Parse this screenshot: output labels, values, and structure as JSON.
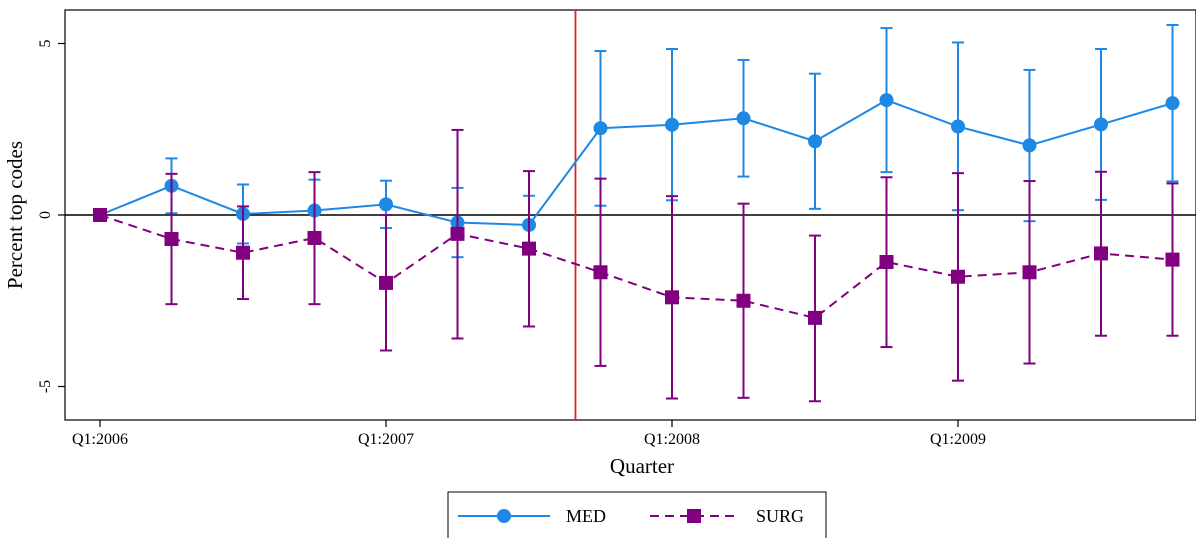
{
  "chart_data": {
    "type": "line",
    "xlabel": "Quarter",
    "ylabel": "Percent top codes",
    "xlim": [
      0,
      15.25
    ],
    "ylim": [
      -5.9,
      6
    ],
    "x_ticks": [
      {
        "x": 0,
        "label": "Q1:2006"
      },
      {
        "x": 4,
        "label": "Q1:2007"
      },
      {
        "x": 8,
        "label": "Q1:2008"
      },
      {
        "x": 12,
        "label": "Q1:2009"
      }
    ],
    "y_ticks": [
      {
        "y": -5,
        "label": "-5"
      },
      {
        "y": 0,
        "label": "0"
      },
      {
        "y": 5,
        "label": "5"
      }
    ],
    "reference_lines": {
      "horizontal_y": 0,
      "vertical_x": 6.65,
      "horizontal_color": "#000000",
      "vertical_color": "#e2231a"
    },
    "series": [
      {
        "name": "MED",
        "color": "#1e88e5",
        "marker": "circle",
        "dash": "solid",
        "x": [
          0,
          1,
          2,
          3,
          4,
          5,
          6,
          7,
          8,
          9,
          10,
          11,
          12,
          13,
          14,
          15
        ],
        "y": [
          0,
          0.85,
          0.03,
          0.13,
          0.31,
          -0.22,
          -0.29,
          2.53,
          2.63,
          2.82,
          2.15,
          3.35,
          2.58,
          2.03,
          2.64,
          3.26
        ],
        "ci_low": [
          0,
          0.05,
          -0.83,
          -0.76,
          -0.38,
          -1.23,
          -1.14,
          0.27,
          0.43,
          1.12,
          0.18,
          1.25,
          0.14,
          -0.18,
          0.44,
          0.98
        ],
        "ci_high": [
          0,
          1.65,
          0.89,
          1.03,
          1.0,
          0.79,
          0.56,
          4.78,
          4.84,
          4.52,
          4.12,
          5.45,
          5.03,
          4.23,
          4.84,
          5.54
        ]
      },
      {
        "name": "SURG",
        "color": "#800080",
        "marker": "square",
        "dash": "dashed",
        "x": [
          0,
          1,
          2,
          3,
          4,
          5,
          6,
          7,
          8,
          9,
          10,
          11,
          12,
          13,
          14,
          15
        ],
        "y": [
          0,
          -0.7,
          -1.1,
          -0.67,
          -1.98,
          -0.55,
          -0.98,
          -1.67,
          -2.4,
          -2.5,
          -3.0,
          -1.37,
          -1.8,
          -1.67,
          -1.12,
          -1.3
        ],
        "ci_low": [
          0,
          -2.6,
          -2.45,
          -2.6,
          -3.95,
          -3.6,
          -3.25,
          -4.4,
          -5.35,
          -5.33,
          -5.43,
          -3.85,
          -4.83,
          -4.33,
          -3.52,
          -3.52
        ],
        "ci_high": [
          0,
          1.2,
          0.25,
          1.25,
          0,
          2.48,
          1.28,
          1.06,
          0.55,
          0.33,
          -0.6,
          1.1,
          1.22,
          0.99,
          1.26,
          0.92
        ]
      }
    ],
    "grid": false,
    "legend": {
      "placement": "bottom-center",
      "entries": [
        "MED",
        "SURG"
      ]
    }
  }
}
